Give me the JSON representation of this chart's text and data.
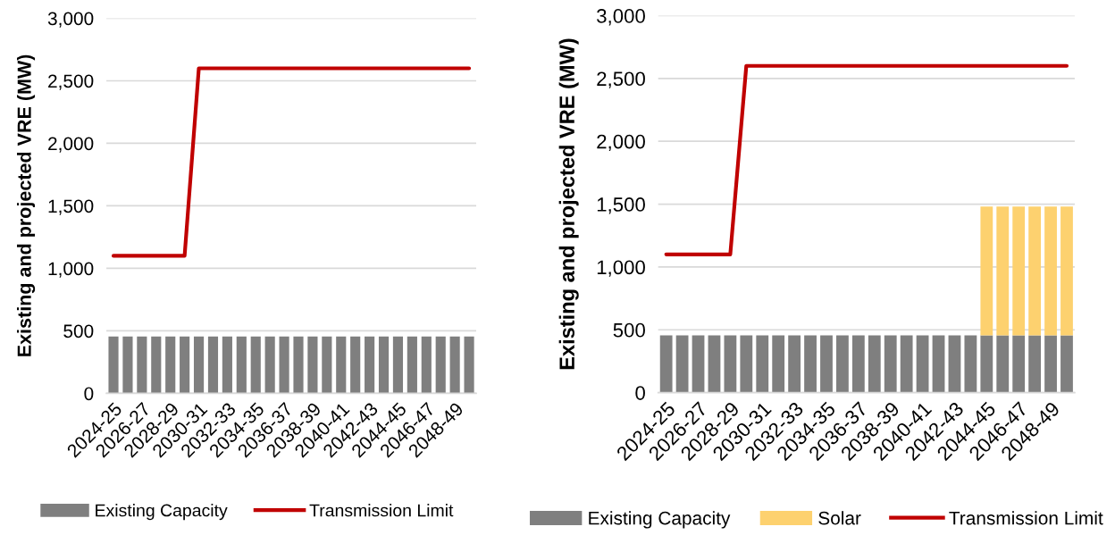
{
  "chart_data": [
    {
      "type": "bar",
      "stacked": true,
      "ylabel": "Existing and projected VRE (MW)",
      "categories": [
        "2024-25",
        null,
        "2026-27",
        null,
        "2028-29",
        null,
        "2030-31",
        null,
        "2032-33",
        null,
        "2034-35",
        null,
        "2036-37",
        null,
        "2038-39",
        null,
        "2040-41",
        null,
        "2042-43",
        null,
        "2044-45",
        null,
        "2046-47",
        null,
        "2048-49",
        null
      ],
      "series": [
        {
          "name": "Existing Capacity",
          "color": "#7f7f7f",
          "values": [
            455,
            455,
            455,
            455,
            455,
            455,
            455,
            455,
            455,
            455,
            455,
            455,
            455,
            455,
            455,
            455,
            455,
            455,
            455,
            455,
            455,
            455,
            455,
            455,
            455,
            455
          ]
        },
        {
          "name": "Transmission Limit",
          "type": "line",
          "color": "#c00000",
          "values": [
            1100,
            1100,
            1100,
            1100,
            1100,
            1100,
            2600,
            2600,
            2600,
            2600,
            2600,
            2600,
            2600,
            2600,
            2600,
            2600,
            2600,
            2600,
            2600,
            2600,
            2600,
            2600,
            2600,
            2600,
            2600,
            2600
          ]
        }
      ],
      "ylim": [
        0,
        3000
      ],
      "yticks": [
        0,
        500,
        {
          "value": 1000,
          "label": "1,000"
        },
        {
          "value": 1500,
          "label": "1,500"
        },
        {
          "value": 2000,
          "label": "2,000"
        },
        {
          "value": 2500,
          "label": "2,500"
        },
        {
          "value": 3000,
          "label": "3,000"
        }
      ],
      "grid": "y",
      "legend": "bottom"
    },
    {
      "type": "bar",
      "stacked": true,
      "ylabel": "Existing and projected VRE (MW)",
      "categories": [
        "2024-25",
        null,
        "2026-27",
        null,
        "2028-29",
        null,
        "2030-31",
        null,
        "2032-33",
        null,
        "2034-35",
        null,
        "2036-37",
        null,
        "2038-39",
        null,
        "2040-41",
        null,
        "2042-43",
        null,
        "2044-45",
        null,
        "2046-47",
        null,
        "2048-49",
        null
      ],
      "series": [
        {
          "name": "Existing Capacity",
          "color": "#7f7f7f",
          "values": [
            455,
            455,
            455,
            455,
            455,
            455,
            455,
            455,
            455,
            455,
            455,
            455,
            455,
            455,
            455,
            455,
            455,
            455,
            455,
            455,
            455,
            455,
            455,
            455,
            455,
            455
          ]
        },
        {
          "name": "Solar",
          "color": "#fdd16f",
          "values": [
            null,
            null,
            null,
            null,
            null,
            null,
            null,
            null,
            null,
            null,
            null,
            null,
            null,
            null,
            null,
            null,
            null,
            null,
            null,
            null,
            1025,
            1025,
            1025,
            1025,
            1025,
            1025
          ]
        },
        {
          "name": "Transmission Limit",
          "type": "line",
          "color": "#c00000",
          "values": [
            1100,
            1100,
            1100,
            1100,
            1100,
            2600,
            2600,
            2600,
            2600,
            2600,
            2600,
            2600,
            2600,
            2600,
            2600,
            2600,
            2600,
            2600,
            2600,
            2600,
            2600,
            2600,
            2600,
            2600,
            2600,
            2600
          ]
        }
      ],
      "ylim": [
        0,
        3000
      ],
      "yticks": [
        0,
        500,
        {
          "value": 1000,
          "label": "1,000"
        },
        {
          "value": 1500,
          "label": "1,500"
        },
        {
          "value": 2000,
          "label": "2,000"
        },
        {
          "value": 2500,
          "label": "2,500"
        },
        {
          "value": 3000,
          "label": "3,000"
        }
      ],
      "grid": "y",
      "legend": "bottom"
    }
  ]
}
